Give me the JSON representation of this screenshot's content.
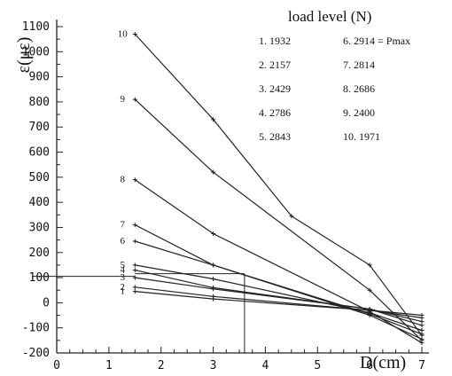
{
  "chart_data": {
    "type": "line",
    "title": "",
    "xlabel": "D(cm)",
    "ylabel": "ε(με)",
    "xlim": [
      0,
      7
    ],
    "ylim": [
      -200,
      1100
    ],
    "xticks": [
      "0",
      "1",
      "2",
      "3",
      "4",
      "5",
      "6",
      "7"
    ],
    "yticks": [
      "-200",
      "-100",
      "0",
      "100",
      "200",
      "300",
      "400",
      "500",
      "600",
      "700",
      "800",
      "900",
      "1000",
      "1100"
    ],
    "grid": false,
    "legend": {
      "title": "load level (N)",
      "position": "top-right",
      "entries": [
        "1.  1932",
        "2.  2157",
        "3.  2429",
        "4.  2786",
        "5.  2843",
        "6.  2914 = Pmax",
        "7.  2814",
        "8.  2686",
        "9.  2400",
        "10.  1971"
      ]
    },
    "series": [
      {
        "label": "1",
        "points": [
          [
            1.5,
            45
          ],
          [
            3,
            15
          ],
          [
            6,
            -30
          ],
          [
            7,
            -50
          ]
        ]
      },
      {
        "label": "2",
        "points": [
          [
            1.5,
            62
          ],
          [
            3,
            25
          ],
          [
            6,
            -30
          ],
          [
            7,
            -60
          ]
        ]
      },
      {
        "label": "3",
        "points": [
          [
            1.5,
            100
          ],
          [
            3,
            55
          ],
          [
            6,
            -25
          ],
          [
            7,
            -75
          ]
        ]
      },
      {
        "label": "4",
        "points": [
          [
            1.5,
            130
          ],
          [
            3,
            60
          ],
          [
            6,
            -25
          ],
          [
            7,
            -90
          ]
        ]
      },
      {
        "label": "5",
        "points": [
          [
            1.5,
            150
          ],
          [
            3,
            95
          ],
          [
            6,
            -40
          ],
          [
            7,
            -110
          ]
        ]
      },
      {
        "label": "6",
        "points": [
          [
            1.5,
            245
          ],
          [
            3,
            150
          ],
          [
            6,
            -45
          ],
          [
            7,
            -125
          ]
        ]
      },
      {
        "label": "7",
        "points": [
          [
            1.5,
            310
          ],
          [
            3,
            150
          ],
          [
            6,
            -50
          ],
          [
            7,
            -145
          ]
        ]
      },
      {
        "label": "8",
        "points": [
          [
            1.5,
            490
          ],
          [
            3,
            275
          ],
          [
            6,
            -35
          ],
          [
            7,
            -160
          ]
        ]
      },
      {
        "label": "9",
        "points": [
          [
            1.5,
            810
          ],
          [
            3,
            520
          ],
          [
            6,
            50
          ],
          [
            7,
            -150
          ]
        ]
      },
      {
        "label": "10",
        "points": [
          [
            1.5,
            1070
          ],
          [
            3,
            730
          ],
          [
            4.5,
            345
          ],
          [
            6,
            150
          ],
          [
            7,
            -130
          ]
        ]
      }
    ],
    "annotation": {
      "label": "3",
      "y": 105,
      "x": 3.6
    }
  }
}
